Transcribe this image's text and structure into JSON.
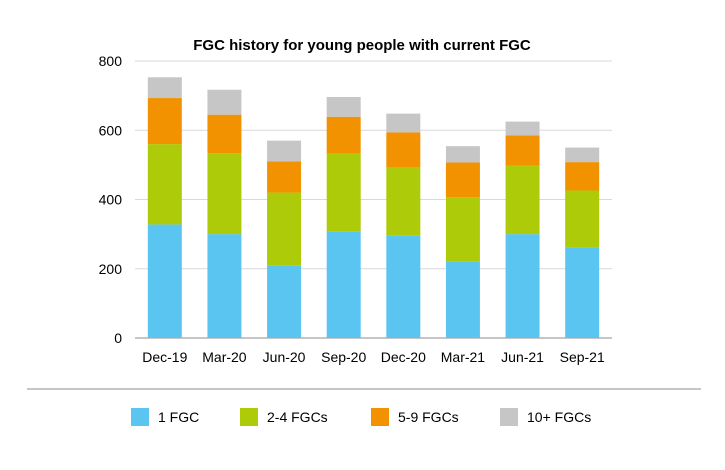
{
  "chart_data": {
    "type": "bar",
    "stacked": true,
    "title": "FGC history for young people with current FGC",
    "xlabel": "",
    "ylabel": "",
    "categories": [
      "Dec-19",
      "Mar-20",
      "Jun-20",
      "Sep-20",
      "Dec-20",
      "Mar-21",
      "Jun-21",
      "Sep-21"
    ],
    "ylim": [
      0,
      800
    ],
    "yticks": [
      0,
      200,
      400,
      600,
      800
    ],
    "grid": true,
    "legend_position": "bottom",
    "series": [
      {
        "name": "1 FGC",
        "color": "#5bc5f2",
        "values": [
          328,
          300,
          210,
          308,
          295,
          222,
          300,
          261
        ]
      },
      {
        "name": "2-4 FGCs",
        "color": "#aecb0a",
        "values": [
          232,
          234,
          210,
          225,
          197,
          185,
          198,
          165
        ]
      },
      {
        "name": "5-9 FGCs",
        "color": "#f39200",
        "values": [
          133,
          111,
          90,
          106,
          102,
          100,
          87,
          82
        ]
      },
      {
        "name": "10+ FGCs",
        "color": "#c6c6c6",
        "values": [
          60,
          72,
          60,
          57,
          54,
          47,
          40,
          42
        ]
      }
    ]
  }
}
